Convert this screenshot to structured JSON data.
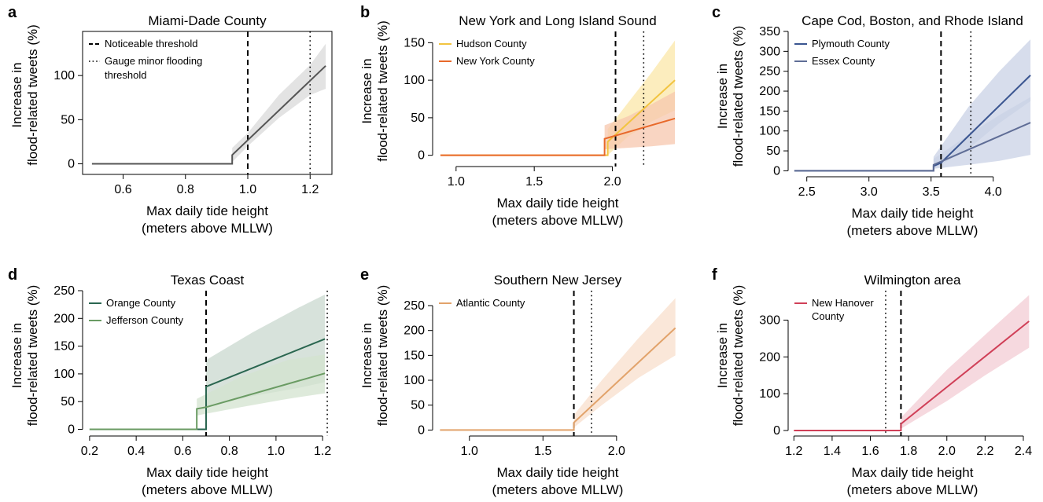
{
  "figure": {
    "shared_legend": {
      "noticeable": "Noticeable threshold",
      "gauge_line1": "Gauge minor flooding",
      "gauge_line2": "threshold"
    }
  },
  "chart_data": [
    {
      "panel": "a",
      "type": "line",
      "title": "Miami-Dade County",
      "xlabel": [
        "Max daily tide height",
        "(meters above MLLW)"
      ],
      "ylabel": [
        "Increase in",
        "flood-related tweets (%)"
      ],
      "xlim": [
        0.47,
        1.27
      ],
      "ylim": [
        -12,
        150
      ],
      "xticks": [
        0.6,
        0.8,
        1.0,
        1.2
      ],
      "yticks": [
        0,
        50,
        100
      ],
      "noticeable_threshold": 1.0,
      "gauge_threshold": 1.2,
      "series": [
        {
          "name": "",
          "color": "#555555",
          "band_color": "#d9d9d9",
          "x": [
            0.5,
            0.95,
            0.95,
            1.25
          ],
          "y": [
            0,
            0,
            10,
            111
          ],
          "band_x": [
            0.95,
            1.0,
            1.1,
            1.2,
            1.25
          ],
          "band_lo": [
            2,
            20,
            52,
            78,
            85
          ],
          "band_hi": [
            18,
            35,
            78,
            112,
            136
          ]
        }
      ]
    },
    {
      "panel": "b",
      "type": "line",
      "title": "New York and Long Island Sound",
      "xlabel": [
        "Max daily tide height",
        "(meters above MLLW)"
      ],
      "ylabel": [
        "Increase in",
        "flood-related tweets (%)"
      ],
      "xlim": [
        0.85,
        2.45
      ],
      "ylim": [
        -15,
        165
      ],
      "xticks": [
        1.0,
        1.5,
        2.0
      ],
      "yticks": [
        0,
        50,
        100,
        150
      ],
      "noticeable_threshold": 2.02,
      "gauge_threshold": 2.2,
      "series": [
        {
          "name": "Hudson County",
          "color": "#f2c440",
          "band_color": "#fbe7a8",
          "x": [
            0.9,
            1.97,
            1.97,
            2.4
          ],
          "y": [
            0,
            0,
            18,
            100
          ],
          "band_x": [
            1.97,
            2.1,
            2.25,
            2.4
          ],
          "band_lo": [
            0,
            25,
            45,
            60
          ],
          "band_hi": [
            35,
            70,
            110,
            153
          ]
        },
        {
          "name": "New York County",
          "color": "#e8692a",
          "band_color": "#f7c7ae",
          "x": [
            0.9,
            1.95,
            1.95,
            2.4
          ],
          "y": [
            0,
            0,
            22,
            49
          ],
          "band_x": [
            1.95,
            2.1,
            2.25,
            2.4
          ],
          "band_lo": [
            8,
            10,
            12,
            15
          ],
          "band_hi": [
            40,
            52,
            68,
            85
          ]
        }
      ]
    },
    {
      "panel": "c",
      "type": "line",
      "title": "Cape Cod, Boston, and Rhode Island",
      "xlabel": [
        "Max daily tide height",
        "(meters above MLLW)"
      ],
      "ylabel": [
        "Increase in",
        "flood-related tweets (%)"
      ],
      "xlim": [
        2.35,
        4.35
      ],
      "ylim": [
        -15,
        350
      ],
      "xticks": [
        2.5,
        3.0,
        3.5,
        4.0
      ],
      "yticks": [
        0,
        50,
        100,
        150,
        200,
        250,
        300,
        350
      ],
      "noticeable_threshold": 3.58,
      "gauge_threshold": 3.82,
      "series": [
        {
          "name": "Plymouth County",
          "color": "#3a5590",
          "band_color": "#c9d2e6",
          "x": [
            2.4,
            3.52,
            3.52,
            3.58,
            4.3
          ],
          "y": [
            0,
            0,
            12,
            20,
            240
          ],
          "band_x": [
            3.52,
            3.8,
            4.05,
            4.3
          ],
          "band_lo": [
            5,
            55,
            120,
            175
          ],
          "band_hi": [
            35,
            160,
            250,
            330
          ]
        },
        {
          "name": "Essex County",
          "color": "#5f6d96",
          "band_color": "#c9d2e6",
          "x": [
            2.4,
            3.52,
            3.52,
            4.3
          ],
          "y": [
            0,
            0,
            15,
            121
          ],
          "band_x": [
            3.52,
            3.8,
            4.05,
            4.3
          ],
          "band_lo": [
            5,
            15,
            25,
            40
          ],
          "band_hi": [
            30,
            90,
            140,
            185
          ]
        }
      ]
    },
    {
      "panel": "d",
      "type": "line",
      "title": "Texas Coast",
      "xlabel": [
        "Max daily tide height",
        "(meters above MLLW)"
      ],
      "ylabel": [
        "Increase in",
        "flood-related tweets (%)"
      ],
      "xlim": [
        0.17,
        1.24
      ],
      "ylim": [
        -12,
        250
      ],
      "xticks": [
        0.2,
        0.4,
        0.6,
        0.8,
        1.0,
        1.2
      ],
      "yticks": [
        0,
        50,
        100,
        150,
        200,
        250
      ],
      "noticeable_threshold": 0.7,
      "gauge_threshold": 1.22,
      "series": [
        {
          "name": "Orange County",
          "color": "#2a6650",
          "band_color": "#c9d8cf",
          "x": [
            0.2,
            0.7,
            0.7,
            1.21
          ],
          "y": [
            0,
            0,
            77,
            163
          ],
          "band_x": [
            0.7,
            0.9,
            1.1,
            1.21
          ],
          "band_lo": [
            40,
            60,
            75,
            85
          ],
          "band_hi": [
            125,
            175,
            220,
            243
          ]
        },
        {
          "name": "Jefferson County",
          "color": "#6a9b63",
          "band_color": "#d3e3cf",
          "x": [
            0.2,
            0.66,
            0.66,
            0.7,
            1.21
          ],
          "y": [
            0,
            0,
            37,
            40,
            101
          ],
          "band_x": [
            0.66,
            0.85,
            1.05,
            1.21
          ],
          "band_lo": [
            25,
            40,
            55,
            65
          ],
          "band_hi": [
            55,
            95,
            125,
            135
          ]
        }
      ]
    },
    {
      "panel": "e",
      "type": "line",
      "title": "Southern New Jersey",
      "xlabel": [
        "Max daily tide height",
        "(meters above MLLW)"
      ],
      "ylabel": [
        "Increase in",
        "flood-related tweets (%)"
      ],
      "xlim": [
        0.75,
        2.45
      ],
      "ylim": [
        -12,
        280
      ],
      "xticks": [
        1.0,
        1.5,
        2.0
      ],
      "yticks": [
        0,
        50,
        100,
        150,
        200,
        250
      ],
      "noticeable_threshold": 1.71,
      "gauge_threshold": 1.83,
      "series": [
        {
          "name": "Atlantic County",
          "color": "#e2a36b",
          "band_color": "#f8dfcc",
          "x": [
            0.8,
            1.71,
            1.71,
            2.4
          ],
          "y": [
            0,
            0,
            15,
            205
          ],
          "band_x": [
            1.71,
            1.9,
            2.15,
            2.4
          ],
          "band_lo": [
            5,
            50,
            105,
            150
          ],
          "band_hi": [
            30,
            100,
            185,
            265
          ]
        }
      ]
    },
    {
      "panel": "f",
      "type": "line",
      "title": "Wilmington area",
      "xlabel": [
        "Max daily tide height",
        "(meters above MLLW)"
      ],
      "ylabel": [
        "Increase in",
        "flood-related tweets (%)"
      ],
      "xlim": [
        1.17,
        2.47
      ],
      "ylim": [
        -15,
        380
      ],
      "xticks": [
        1.2,
        1.4,
        1.6,
        1.8,
        2.0,
        2.2,
        2.4
      ],
      "yticks": [
        0,
        100,
        200,
        300
      ],
      "noticeable_threshold": 1.76,
      "gauge_threshold": 1.68,
      "series": [
        {
          "name": "New Hanover County",
          "legend_lines": [
            "New Hanover",
            "County"
          ],
          "color": "#d04058",
          "band_color": "#f3ccd4",
          "x": [
            1.2,
            1.76,
            1.76,
            2.43
          ],
          "y": [
            0,
            0,
            18,
            297
          ],
          "band_x": [
            1.76,
            2.0,
            2.2,
            2.43
          ],
          "band_lo": [
            5,
            80,
            150,
            225
          ],
          "band_hi": [
            35,
            165,
            260,
            368
          ]
        }
      ]
    }
  ]
}
